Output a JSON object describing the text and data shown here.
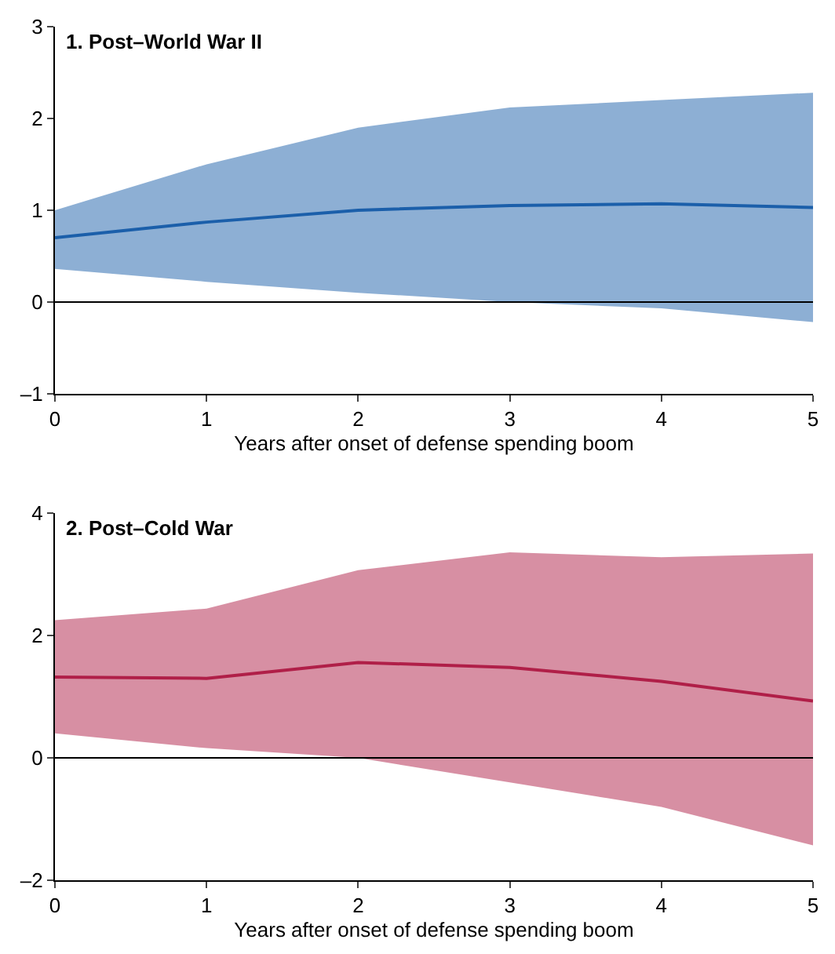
{
  "chart_data": [
    {
      "type": "line",
      "title": "1. Post–World War II",
      "xlabel": "Years after onset of defense spending boom",
      "x": [
        0,
        1,
        2,
        3,
        4,
        5
      ],
      "series": [
        {
          "color": "#1b5faa",
          "values": [
            0.7,
            0.87,
            1.0,
            1.05,
            1.07,
            1.03
          ],
          "lower": [
            0.36,
            0.22,
            0.1,
            0.0,
            -0.07,
            -0.22
          ],
          "upper": [
            1.0,
            1.5,
            1.9,
            2.12,
            2.2,
            2.28
          ]
        }
      ],
      "xlim": [
        0,
        5
      ],
      "xticks": [
        0,
        1,
        2,
        3,
        4,
        5
      ],
      "ylim": [
        -1,
        3
      ],
      "yticks": [
        {
          "value": -1,
          "label": "–1"
        },
        0,
        1,
        2,
        3
      ],
      "ref_lines": [
        {
          "axis": "y",
          "value": 0,
          "color": "#000000"
        }
      ],
      "marker": "none",
      "line_style": "solid"
    },
    {
      "type": "line",
      "title": "2. Post–Cold War",
      "xlabel": "Years after onset of defense spending boom",
      "x": [
        0,
        1,
        2,
        3,
        4,
        5
      ],
      "series": [
        {
          "color": "#b01f48",
          "values": [
            1.32,
            1.3,
            1.56,
            1.48,
            1.25,
            0.93
          ],
          "lower": [
            0.4,
            0.16,
            0.0,
            -0.4,
            -0.8,
            -1.43
          ],
          "upper": [
            2.25,
            2.44,
            3.07,
            3.36,
            3.28,
            3.34
          ]
        }
      ],
      "xlim": [
        0,
        5
      ],
      "xticks": [
        0,
        1,
        2,
        3,
        4,
        5
      ],
      "ylim": [
        -2,
        4
      ],
      "yticks": [
        {
          "value": -2,
          "label": "–2"
        },
        0,
        2,
        4
      ],
      "ref_lines": [
        {
          "axis": "y",
          "value": 0,
          "color": "#000000"
        }
      ],
      "marker": "none",
      "line_style": "solid"
    }
  ]
}
